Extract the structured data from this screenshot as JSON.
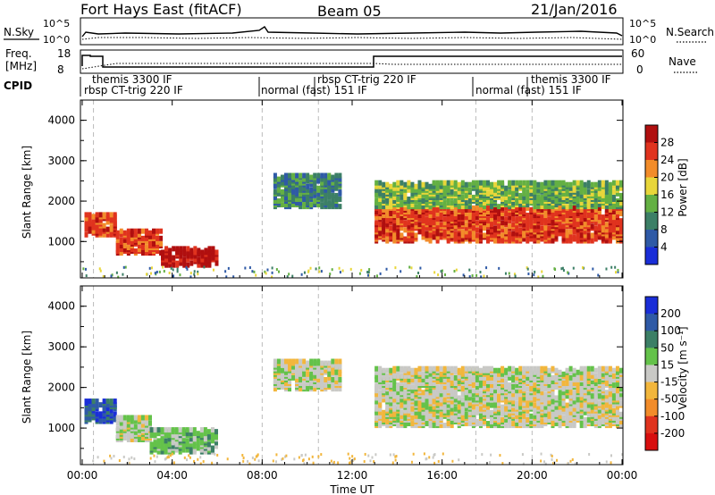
{
  "header": {
    "station": "Fort Hays East (fitACF)",
    "beam": "Beam 05",
    "date": "21/Jan/2016"
  },
  "panels": {
    "nsky_label": "N.Sky",
    "nsky_ticks": [
      "10^5",
      "10^0"
    ],
    "nsearch_label": "N.Search",
    "nsearch_ticks": [
      "10^5",
      "10^0"
    ],
    "freq_label": "Freq.",
    "freq_unit": "[MHz]",
    "freq_ticks": [
      "18",
      "8"
    ],
    "nave_label": "Nave",
    "nave_ticks": [
      "60",
      "0"
    ],
    "cpid_label": "CPID",
    "cpid_modes": [
      {
        "name": "themis 3300 IF",
        "row": "top"
      },
      {
        "name": "rbsp CT-trig 220 IF",
        "row": "bottom"
      },
      {
        "name": "normal (fast) 151 IF",
        "row": "bottom"
      },
      {
        "name": "rbsp CT-trig 220 IF",
        "row": "top"
      },
      {
        "name": "normal (fast) 151 IF",
        "row": "bottom"
      },
      {
        "name": "themis 3300 IF",
        "row": "top"
      }
    ]
  },
  "chart_data": [
    {
      "type": "heatmap",
      "title": "",
      "ylabel": "Slant Range [km]",
      "xlabel": "Time UT",
      "ylim": [
        100,
        4500
      ],
      "yticks": [
        "1000",
        "2000",
        "3000",
        "4000"
      ],
      "colorbar": {
        "label": "Power [dB]",
        "ticks": [
          "4",
          "8",
          "12",
          "16",
          "20",
          "24",
          "28"
        ],
        "colors": [
          "#1a2ed8",
          "#2f5aa6",
          "#3c7f66",
          "#64b043",
          "#e8d63a",
          "#f28c2a",
          "#e0331e",
          "#b00f0f"
        ]
      },
      "echo_regions": [
        {
          "t_start": 0.1,
          "t_end": 1.5,
          "range_lo": 1100,
          "range_hi": 1600,
          "level": 6
        },
        {
          "t_start": 1.5,
          "t_end": 3.5,
          "range_lo": 650,
          "range_hi": 1200,
          "level": 6
        },
        {
          "t_start": 3.5,
          "t_end": 6.0,
          "range_lo": 350,
          "range_hi": 800,
          "level": 7
        },
        {
          "t_start": 13.0,
          "t_end": 24.0,
          "range_lo": 950,
          "range_hi": 1800,
          "level": 6
        },
        {
          "t_start": 13.0,
          "t_end": 24.0,
          "range_lo": 1800,
          "range_hi": 2400,
          "level": 3
        },
        {
          "t_start": 8.5,
          "t_end": 11.5,
          "range_lo": 1800,
          "range_hi": 2600,
          "level": 2
        }
      ]
    },
    {
      "type": "heatmap",
      "title": "",
      "ylabel": "Slant Range [km]",
      "xlabel": "Time UT",
      "ylim": [
        100,
        4500
      ],
      "yticks": [
        "1000",
        "2000",
        "3000",
        "4000"
      ],
      "colorbar": {
        "label": "Velocity [m s⁻¹]",
        "ticks": [
          "200",
          "100",
          "50",
          "15",
          "-15",
          "-50",
          "-100",
          "-200"
        ],
        "colors": [
          "#1a2ed8",
          "#2f5aa6",
          "#3c7f66",
          "#64c24a",
          "#c9c9c6",
          "#f2b63c",
          "#f28c2a",
          "#e0331e",
          "#d80f0f"
        ]
      },
      "echo_regions": [
        {
          "t_start": 0.1,
          "t_end": 1.5,
          "range_lo": 1100,
          "range_hi": 1600,
          "level": 1
        },
        {
          "t_start": 1.5,
          "t_end": 3.0,
          "range_lo": 650,
          "range_hi": 1200,
          "level": 4
        },
        {
          "t_start": 3.0,
          "t_end": 6.0,
          "range_lo": 350,
          "range_hi": 900,
          "level": 3
        },
        {
          "t_start": 13.0,
          "t_end": 24.0,
          "range_lo": 1000,
          "range_hi": 2400,
          "level": 4
        },
        {
          "t_start": 8.5,
          "t_end": 11.5,
          "range_lo": 1900,
          "range_hi": 2600,
          "level": 4
        }
      ]
    }
  ],
  "x_axis": {
    "label": "Time UT",
    "ticks": [
      "00:00",
      "04:00",
      "08:00",
      "12:00",
      "16:00",
      "20:00",
      "00:00"
    ],
    "tick_hours": [
      0,
      4,
      8,
      12,
      16,
      20,
      24
    ]
  }
}
